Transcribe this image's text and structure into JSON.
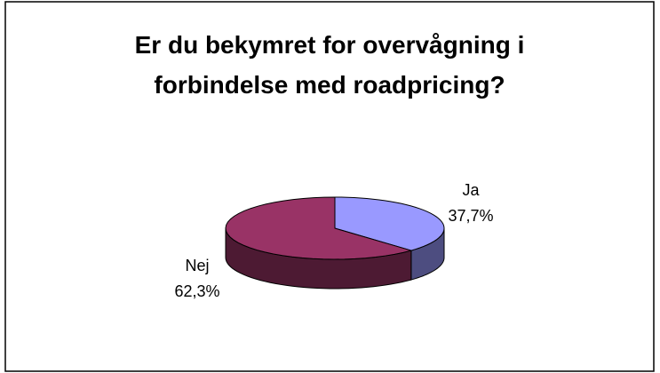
{
  "chart_data": {
    "type": "pie3d",
    "title": "Er du bekymret for overvågning i forbindelse med roadpricing?",
    "categories": [
      "Ja",
      "Nej"
    ],
    "values": [
      37.7,
      62.3
    ],
    "value_labels": [
      "37,7%",
      "62,3%"
    ],
    "colors": [
      "#9999ff",
      "#993366"
    ],
    "side_colors": [
      "#4d4d80",
      "#4d1a33"
    ]
  }
}
